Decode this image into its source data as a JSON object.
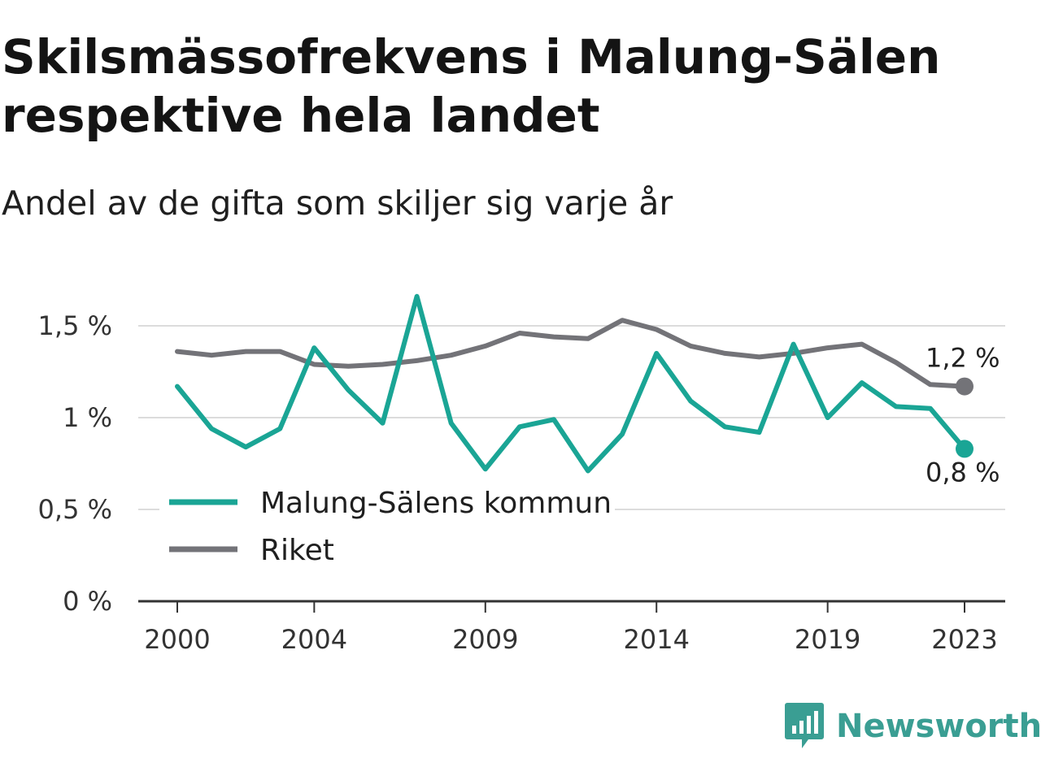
{
  "title": "Skilsmässofrekvens i Malung-Sälen respektive hela landet",
  "subtitle": "Andel av de gifta som skiljer sig varje år",
  "brand": {
    "name": "Newsworthy",
    "icon": "newsworthy-logo-icon",
    "color": "#3a9e93"
  },
  "chart_data": {
    "type": "line",
    "x": [
      2000,
      2001,
      2002,
      2003,
      2004,
      2005,
      2006,
      2007,
      2008,
      2009,
      2010,
      2011,
      2012,
      2013,
      2014,
      2015,
      2016,
      2017,
      2018,
      2019,
      2020,
      2021,
      2022,
      2023
    ],
    "x_tick_labels": [
      "2000",
      "2004",
      "2009",
      "2014",
      "2019",
      "2023"
    ],
    "x_tick_values": [
      2000,
      2004,
      2009,
      2014,
      2019,
      2023
    ],
    "y_tick_labels": [
      "0 %",
      "0,5 %",
      "1 %",
      "1,5 %"
    ],
    "y_tick_values": [
      0,
      0.5,
      1,
      1.5
    ],
    "ylim": [
      0,
      1.5
    ],
    "xlim": [
      2000,
      2023
    ],
    "grid": "horizontal",
    "legend_position": "bottom-left",
    "series": [
      {
        "name": "Malung-Sälens kommun",
        "color": "#1aa595",
        "values": [
          1.17,
          0.94,
          0.84,
          0.94,
          1.38,
          1.15,
          0.97,
          1.66,
          0.97,
          0.72,
          0.95,
          0.99,
          0.71,
          0.91,
          1.35,
          1.09,
          0.95,
          0.92,
          1.4,
          1.0,
          1.19,
          1.06,
          1.05,
          0.83
        ],
        "end_label": "0,8 %"
      },
      {
        "name": "Riket",
        "color": "#737378",
        "values": [
          1.36,
          1.34,
          1.36,
          1.36,
          1.29,
          1.28,
          1.29,
          1.31,
          1.34,
          1.39,
          1.46,
          1.44,
          1.43,
          1.53,
          1.48,
          1.39,
          1.35,
          1.33,
          1.35,
          1.38,
          1.4,
          1.3,
          1.18,
          1.17
        ],
        "end_label": "1,2 %"
      }
    ]
  }
}
